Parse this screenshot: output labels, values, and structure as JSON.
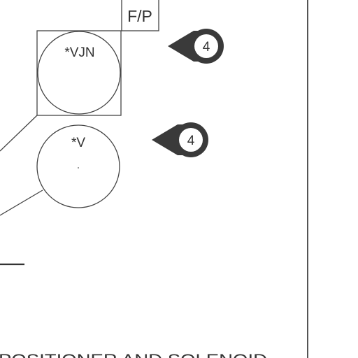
{
  "diagram": {
    "box_label": "F/P",
    "instrument_top": "*VJN",
    "instrument_bottom": "*V",
    "callout_top": "4",
    "callout_bottom": "4",
    "caption": "POSITIONER AND SOLENOID"
  },
  "colors": {
    "line": "#444444",
    "callout_fill": "#3a3a3a",
    "background": "#ffffff"
  }
}
